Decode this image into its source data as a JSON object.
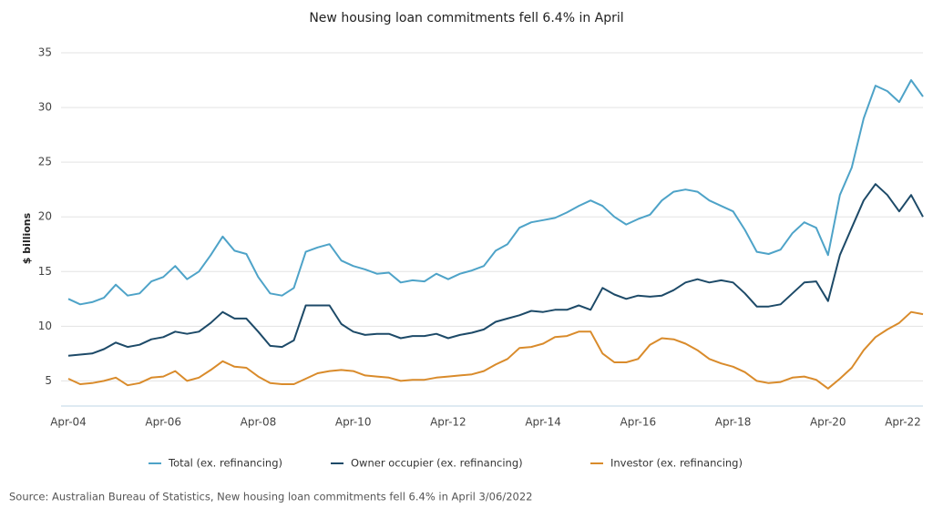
{
  "chart_data": {
    "type": "line",
    "title": "New housing loan commitments fell 6.4% in April",
    "y_label": "$ billions",
    "source": "Source: Australian Bureau of Statistics, New housing loan commitments fell 6.4% in April 3/06/2022",
    "categories": [
      "Apr-04",
      null,
      null,
      null,
      null,
      null,
      null,
      null,
      "Apr-06",
      null,
      null,
      null,
      null,
      null,
      null,
      null,
      "Apr-08",
      null,
      null,
      null,
      null,
      null,
      null,
      null,
      "Apr-10",
      null,
      null,
      null,
      null,
      null,
      null,
      null,
      "Apr-12",
      null,
      null,
      null,
      null,
      null,
      null,
      null,
      "Apr-14",
      null,
      null,
      null,
      null,
      null,
      null,
      null,
      "Apr-16",
      null,
      null,
      null,
      null,
      null,
      null,
      null,
      "Apr-18",
      null,
      null,
      null,
      null,
      null,
      null,
      null,
      "Apr-20",
      null,
      null,
      null,
      null,
      null,
      null,
      null,
      "Apr-22"
    ],
    "series": [
      {
        "name": "Total (ex. refinancing)",
        "color": "#4ea3c8",
        "values": [
          12.5,
          12.0,
          12.2,
          12.6,
          13.8,
          12.8,
          13.0,
          14.1,
          14.5,
          15.5,
          14.3,
          15.0,
          16.5,
          18.2,
          16.9,
          16.6,
          14.5,
          13.0,
          12.8,
          13.5,
          16.8,
          17.2,
          17.5,
          16.0,
          15.5,
          15.2,
          14.8,
          14.9,
          14.0,
          14.2,
          14.1,
          14.8,
          14.3,
          14.8,
          15.1,
          15.5,
          16.9,
          17.5,
          19.0,
          19.5,
          19.7,
          19.9,
          20.4,
          21.0,
          21.5,
          21.0,
          20.0,
          19.3,
          19.8,
          20.2,
          21.5,
          22.3,
          22.5,
          22.3,
          21.5,
          21.0,
          20.5,
          18.8,
          16.8,
          16.6,
          17.0,
          18.5,
          19.5,
          19.0,
          16.5,
          22.0,
          24.5,
          29.0,
          32.0,
          31.5,
          30.5,
          32.5,
          31.0
        ]
      },
      {
        "name": "Owner occupier (ex. refinancing)",
        "color": "#1d4a68",
        "values": [
          7.3,
          7.4,
          7.5,
          7.9,
          8.5,
          8.1,
          8.3,
          8.8,
          9.0,
          9.5,
          9.3,
          9.5,
          10.3,
          11.3,
          10.7,
          10.7,
          9.5,
          8.2,
          8.1,
          8.7,
          11.9,
          11.9,
          11.9,
          10.2,
          9.5,
          9.2,
          9.3,
          9.3,
          8.9,
          9.1,
          9.1,
          9.3,
          8.9,
          9.2,
          9.4,
          9.7,
          10.4,
          10.7,
          11.0,
          11.4,
          11.3,
          11.5,
          11.5,
          11.9,
          11.5,
          13.5,
          12.9,
          12.5,
          12.8,
          12.7,
          12.8,
          13.3,
          14.0,
          14.3,
          14.0,
          14.2,
          14.0,
          13.0,
          11.8,
          11.8,
          12.0,
          13.0,
          14.0,
          14.1,
          12.3,
          16.5,
          19.0,
          21.5,
          23.0,
          22.0,
          20.5,
          22.0,
          20.0
        ]
      },
      {
        "name": "Investor (ex. refinancing)",
        "color": "#d98b2b",
        "values": [
          5.2,
          4.7,
          4.8,
          5.0,
          5.3,
          4.6,
          4.8,
          5.3,
          5.4,
          5.9,
          5.0,
          5.3,
          6.0,
          6.8,
          6.3,
          6.2,
          5.4,
          4.8,
          4.7,
          4.7,
          5.2,
          5.7,
          5.9,
          6.0,
          5.9,
          5.5,
          5.4,
          5.3,
          5.0,
          5.1,
          5.1,
          5.3,
          5.4,
          5.5,
          5.6,
          5.9,
          6.5,
          7.0,
          8.0,
          8.1,
          8.4,
          9.0,
          9.1,
          9.5,
          9.5,
          7.5,
          6.7,
          6.7,
          7.0,
          8.3,
          8.9,
          8.8,
          8.4,
          7.8,
          7.0,
          6.6,
          6.3,
          5.8,
          5.0,
          4.8,
          4.9,
          5.3,
          5.4,
          5.1,
          4.3,
          5.2,
          6.2,
          7.8,
          9.0,
          9.7,
          10.3,
          11.3,
          11.1
        ]
      }
    ],
    "ylim": [
      2.7,
      36.5
    ],
    "yticks": [
      5,
      10,
      15,
      20,
      25,
      30,
      35
    ],
    "grid": true
  }
}
